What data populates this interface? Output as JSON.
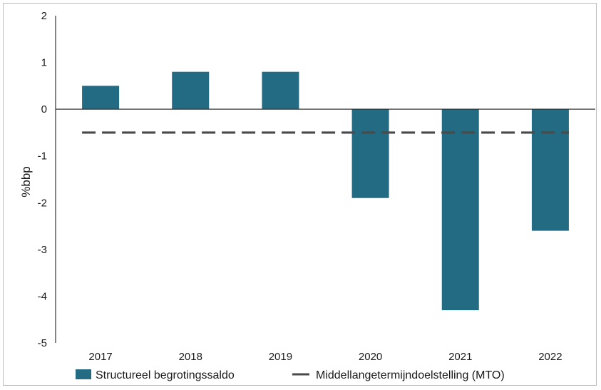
{
  "chart_data": {
    "type": "bar",
    "categories": [
      "2017",
      "2018",
      "2019",
      "2020",
      "2021",
      "2022"
    ],
    "series": [
      {
        "name": "Structureel begrotingssaldo",
        "type": "bar",
        "color": "#236b83",
        "values": [
          0.5,
          0.8,
          0.8,
          -1.9,
          -4.3,
          -2.6
        ]
      },
      {
        "name": "Middellangetermijndoelstelling (MTO)",
        "type": "line",
        "style": "dashed",
        "color": "#4a4a4a",
        "values": [
          -0.5,
          -0.5,
          -0.5,
          -0.5,
          -0.5,
          -0.5
        ]
      }
    ],
    "ylabel": "%bbp",
    "xlabel": "",
    "ylim": [
      -5,
      2
    ],
    "yticks": [
      "2",
      "1",
      "0",
      "-1",
      "-2",
      "-3",
      "-4",
      "-5"
    ],
    "grid": false,
    "legend": "bottom"
  }
}
